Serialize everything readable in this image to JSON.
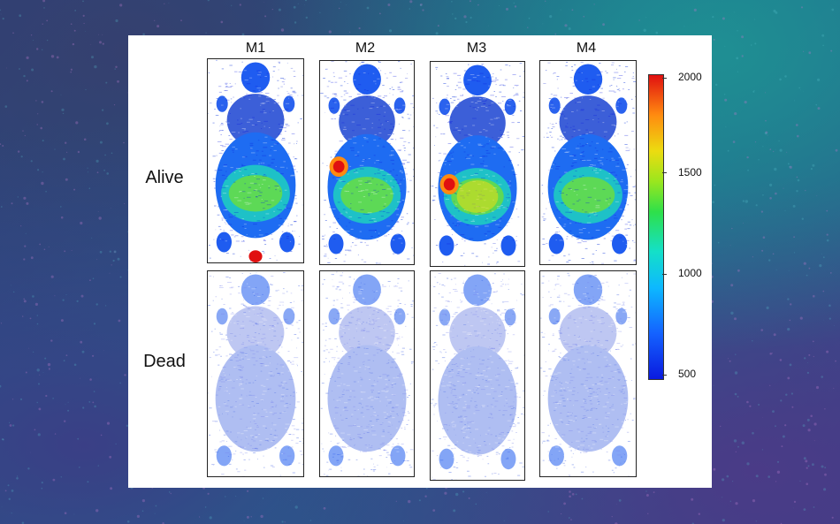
{
  "figure": {
    "columns": [
      "M1",
      "M2",
      "M3",
      "M4"
    ],
    "rows": [
      "Alive",
      "Dead"
    ]
  },
  "colorbar": {
    "ticks": [
      "2000",
      "1500",
      "1000",
      "500"
    ],
    "colors": [
      "#e01010",
      "#ff8a10",
      "#ecdc10",
      "#2ee04a",
      "#14e0c8",
      "#0db8ff",
      "#1462ff",
      "#0a1adf"
    ]
  },
  "panels": [
    {
      "mouse": "M1",
      "state": "Alive",
      "hotspots": [
        "tail-base"
      ]
    },
    {
      "mouse": "M2",
      "state": "Alive",
      "hotspots": [
        "left-flank"
      ]
    },
    {
      "mouse": "M3",
      "state": "Alive",
      "hotspots": [
        "left-flank",
        "abdomen"
      ]
    },
    {
      "mouse": "M4",
      "state": "Alive",
      "hotspots": []
    },
    {
      "mouse": "M1",
      "state": "Dead",
      "hotspots": []
    },
    {
      "mouse": "M2",
      "state": "Dead",
      "hotspots": []
    },
    {
      "mouse": "M3",
      "state": "Dead",
      "hotspots": []
    },
    {
      "mouse": "M4",
      "state": "Dead",
      "hotspots": []
    }
  ]
}
